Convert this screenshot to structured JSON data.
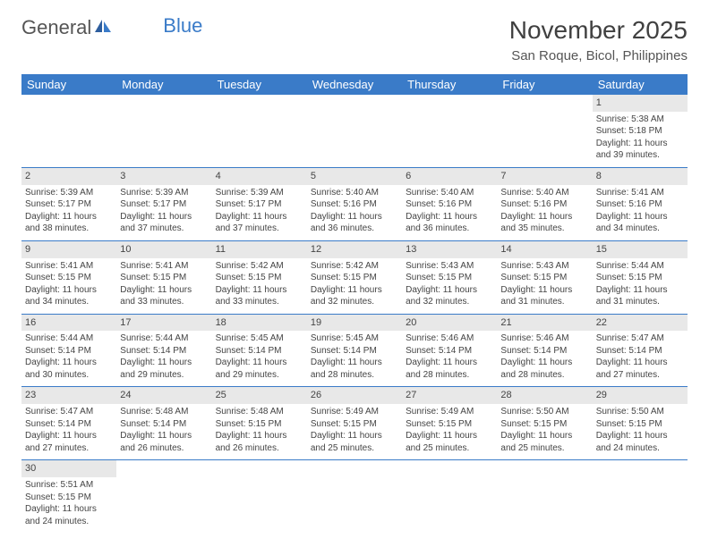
{
  "logo": {
    "part1": "General",
    "part2": "Blue"
  },
  "title": "November 2025",
  "location": "San Roque, Bicol, Philippines",
  "dayHeaders": [
    "Sunday",
    "Monday",
    "Tuesday",
    "Wednesday",
    "Thursday",
    "Friday",
    "Saturday"
  ],
  "colors": {
    "header_bg": "#3a7bc8",
    "header_text": "#ffffff",
    "daynum_bg": "#e8e8e8",
    "text": "#444444",
    "rule": "#3a7bc8"
  },
  "weeks": [
    [
      null,
      null,
      null,
      null,
      null,
      null,
      {
        "num": "1",
        "sunrise": "Sunrise: 5:38 AM",
        "sunset": "Sunset: 5:18 PM",
        "daylight": "Daylight: 11 hours and 39 minutes."
      }
    ],
    [
      {
        "num": "2",
        "sunrise": "Sunrise: 5:39 AM",
        "sunset": "Sunset: 5:17 PM",
        "daylight": "Daylight: 11 hours and 38 minutes."
      },
      {
        "num": "3",
        "sunrise": "Sunrise: 5:39 AM",
        "sunset": "Sunset: 5:17 PM",
        "daylight": "Daylight: 11 hours and 37 minutes."
      },
      {
        "num": "4",
        "sunrise": "Sunrise: 5:39 AM",
        "sunset": "Sunset: 5:17 PM",
        "daylight": "Daylight: 11 hours and 37 minutes."
      },
      {
        "num": "5",
        "sunrise": "Sunrise: 5:40 AM",
        "sunset": "Sunset: 5:16 PM",
        "daylight": "Daylight: 11 hours and 36 minutes."
      },
      {
        "num": "6",
        "sunrise": "Sunrise: 5:40 AM",
        "sunset": "Sunset: 5:16 PM",
        "daylight": "Daylight: 11 hours and 36 minutes."
      },
      {
        "num": "7",
        "sunrise": "Sunrise: 5:40 AM",
        "sunset": "Sunset: 5:16 PM",
        "daylight": "Daylight: 11 hours and 35 minutes."
      },
      {
        "num": "8",
        "sunrise": "Sunrise: 5:41 AM",
        "sunset": "Sunset: 5:16 PM",
        "daylight": "Daylight: 11 hours and 34 minutes."
      }
    ],
    [
      {
        "num": "9",
        "sunrise": "Sunrise: 5:41 AM",
        "sunset": "Sunset: 5:15 PM",
        "daylight": "Daylight: 11 hours and 34 minutes."
      },
      {
        "num": "10",
        "sunrise": "Sunrise: 5:41 AM",
        "sunset": "Sunset: 5:15 PM",
        "daylight": "Daylight: 11 hours and 33 minutes."
      },
      {
        "num": "11",
        "sunrise": "Sunrise: 5:42 AM",
        "sunset": "Sunset: 5:15 PM",
        "daylight": "Daylight: 11 hours and 33 minutes."
      },
      {
        "num": "12",
        "sunrise": "Sunrise: 5:42 AM",
        "sunset": "Sunset: 5:15 PM",
        "daylight": "Daylight: 11 hours and 32 minutes."
      },
      {
        "num": "13",
        "sunrise": "Sunrise: 5:43 AM",
        "sunset": "Sunset: 5:15 PM",
        "daylight": "Daylight: 11 hours and 32 minutes."
      },
      {
        "num": "14",
        "sunrise": "Sunrise: 5:43 AM",
        "sunset": "Sunset: 5:15 PM",
        "daylight": "Daylight: 11 hours and 31 minutes."
      },
      {
        "num": "15",
        "sunrise": "Sunrise: 5:44 AM",
        "sunset": "Sunset: 5:15 PM",
        "daylight": "Daylight: 11 hours and 31 minutes."
      }
    ],
    [
      {
        "num": "16",
        "sunrise": "Sunrise: 5:44 AM",
        "sunset": "Sunset: 5:14 PM",
        "daylight": "Daylight: 11 hours and 30 minutes."
      },
      {
        "num": "17",
        "sunrise": "Sunrise: 5:44 AM",
        "sunset": "Sunset: 5:14 PM",
        "daylight": "Daylight: 11 hours and 29 minutes."
      },
      {
        "num": "18",
        "sunrise": "Sunrise: 5:45 AM",
        "sunset": "Sunset: 5:14 PM",
        "daylight": "Daylight: 11 hours and 29 minutes."
      },
      {
        "num": "19",
        "sunrise": "Sunrise: 5:45 AM",
        "sunset": "Sunset: 5:14 PM",
        "daylight": "Daylight: 11 hours and 28 minutes."
      },
      {
        "num": "20",
        "sunrise": "Sunrise: 5:46 AM",
        "sunset": "Sunset: 5:14 PM",
        "daylight": "Daylight: 11 hours and 28 minutes."
      },
      {
        "num": "21",
        "sunrise": "Sunrise: 5:46 AM",
        "sunset": "Sunset: 5:14 PM",
        "daylight": "Daylight: 11 hours and 28 minutes."
      },
      {
        "num": "22",
        "sunrise": "Sunrise: 5:47 AM",
        "sunset": "Sunset: 5:14 PM",
        "daylight": "Daylight: 11 hours and 27 minutes."
      }
    ],
    [
      {
        "num": "23",
        "sunrise": "Sunrise: 5:47 AM",
        "sunset": "Sunset: 5:14 PM",
        "daylight": "Daylight: 11 hours and 27 minutes."
      },
      {
        "num": "24",
        "sunrise": "Sunrise: 5:48 AM",
        "sunset": "Sunset: 5:14 PM",
        "daylight": "Daylight: 11 hours and 26 minutes."
      },
      {
        "num": "25",
        "sunrise": "Sunrise: 5:48 AM",
        "sunset": "Sunset: 5:15 PM",
        "daylight": "Daylight: 11 hours and 26 minutes."
      },
      {
        "num": "26",
        "sunrise": "Sunrise: 5:49 AM",
        "sunset": "Sunset: 5:15 PM",
        "daylight": "Daylight: 11 hours and 25 minutes."
      },
      {
        "num": "27",
        "sunrise": "Sunrise: 5:49 AM",
        "sunset": "Sunset: 5:15 PM",
        "daylight": "Daylight: 11 hours and 25 minutes."
      },
      {
        "num": "28",
        "sunrise": "Sunrise: 5:50 AM",
        "sunset": "Sunset: 5:15 PM",
        "daylight": "Daylight: 11 hours and 25 minutes."
      },
      {
        "num": "29",
        "sunrise": "Sunrise: 5:50 AM",
        "sunset": "Sunset: 5:15 PM",
        "daylight": "Daylight: 11 hours and 24 minutes."
      }
    ],
    [
      {
        "num": "30",
        "sunrise": "Sunrise: 5:51 AM",
        "sunset": "Sunset: 5:15 PM",
        "daylight": "Daylight: 11 hours and 24 minutes."
      },
      null,
      null,
      null,
      null,
      null,
      null
    ]
  ]
}
